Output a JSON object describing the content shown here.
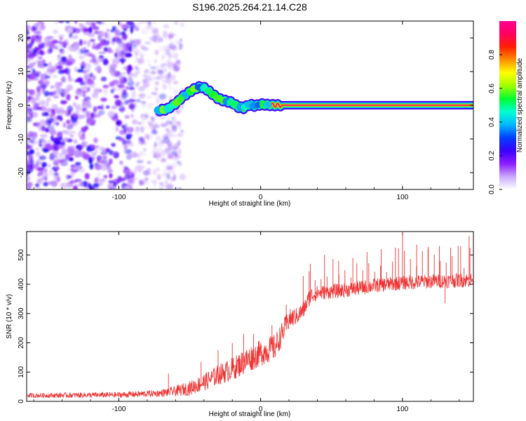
{
  "title": "S196.2025.264.21.14.C28",
  "chart_data": [
    {
      "type": "heatmap",
      "name": "spectrogram",
      "xlabel": "Height of straight line (km)",
      "ylabel": "Frequency (Hz)",
      "xlim": [
        -165,
        150
      ],
      "ylim": [
        -25,
        25
      ],
      "xticks": [
        -100,
        0,
        100
      ],
      "yticks": [
        -20,
        -10,
        0,
        10,
        20
      ],
      "ridge": {
        "description_values": "peak frequency (Hz) vs height (km)",
        "x": [
          -72,
          -66,
          -60,
          -55,
          -50,
          -46,
          -42,
          -39,
          -36,
          -33,
          -30,
          -27,
          -24,
          -20,
          -16,
          -12,
          -8,
          -4,
          0,
          5,
          10,
          20,
          40,
          80,
          120,
          150
        ],
        "y": [
          -1.5,
          -1.2,
          0.5,
          2.5,
          4.0,
          5.0,
          5.5,
          5.0,
          4.0,
          3.0,
          2.0,
          1.5,
          1.2,
          0.8,
          -0.5,
          -0.8,
          0.2,
          -0.2,
          0.3,
          0.1,
          0.0,
          0.0,
          0.0,
          0.0,
          0.0,
          0.0
        ]
      },
      "noise_region_km": [
        -165,
        -65
      ],
      "colorbar": {
        "label": "Normalized spectral amplitude",
        "range": [
          0.0,
          1.0
        ],
        "ticks": [
          0.0,
          0.2,
          0.4,
          0.6,
          0.8
        ],
        "tick_labels": [
          "0.0",
          "0.2",
          "0.4",
          "0.6",
          "0.8"
        ],
        "colormap": [
          "#ffffff",
          "#c9a8ff",
          "#8c1cff",
          "#3a00ff",
          "#0040ff",
          "#00b8ff",
          "#00ffd0",
          "#00ff30",
          "#a0ff00",
          "#ffff00",
          "#ff9000",
          "#ff2000",
          "#ff0060",
          "#ff0090"
        ]
      }
    },
    {
      "type": "line",
      "name": "snr",
      "xlabel": "Height of straight line (km)",
      "ylabel": "SNR (10 * v/v)",
      "xlim": [
        -165,
        150
      ],
      "ylim": [
        0,
        580
      ],
      "xticks": [
        -100,
        0,
        100
      ],
      "yticks": [
        0,
        100,
        200,
        300,
        400,
        500
      ],
      "color": "#ee3333",
      "trend": {
        "x": [
          -165,
          -100,
          -70,
          -60,
          -50,
          -40,
          -30,
          -20,
          -10,
          0,
          10,
          15,
          20,
          25,
          30,
          35,
          40,
          60,
          80,
          100,
          120,
          150
        ],
        "y": [
          20,
          22,
          28,
          35,
          45,
          65,
          90,
          110,
          140,
          165,
          185,
          230,
          280,
          290,
          310,
          360,
          370,
          380,
          395,
          405,
          410,
          415
        ]
      },
      "noise_amplitude": [
        8,
        10,
        12,
        18,
        25,
        30,
        35,
        40,
        45,
        45,
        45,
        40,
        35,
        30,
        30,
        30,
        25,
        25,
        25,
        25,
        25,
        25
      ],
      "spikes": [
        {
          "x": -65,
          "y": 95
        },
        {
          "x": -42,
          "y": 135
        },
        {
          "x": -30,
          "y": 175
        },
        {
          "x": -20,
          "y": 200
        },
        {
          "x": -12,
          "y": 230
        },
        {
          "x": -5,
          "y": 230
        },
        {
          "x": 8,
          "y": 260
        },
        {
          "x": 18,
          "y": 330
        },
        {
          "x": 35,
          "y": 470
        },
        {
          "x": 45,
          "y": 500
        },
        {
          "x": 55,
          "y": 480
        },
        {
          "x": 65,
          "y": 490
        },
        {
          "x": 75,
          "y": 510
        },
        {
          "x": 85,
          "y": 520
        },
        {
          "x": 95,
          "y": 525
        },
        {
          "x": 100,
          "y": 580
        },
        {
          "x": 110,
          "y": 535
        },
        {
          "x": 118,
          "y": 520
        },
        {
          "x": 126,
          "y": 530
        },
        {
          "x": 134,
          "y": 525
        },
        {
          "x": 141,
          "y": 530
        },
        {
          "x": 147,
          "y": 565
        }
      ],
      "dips": [
        {
          "x": 130,
          "y": 335
        }
      ]
    }
  ]
}
